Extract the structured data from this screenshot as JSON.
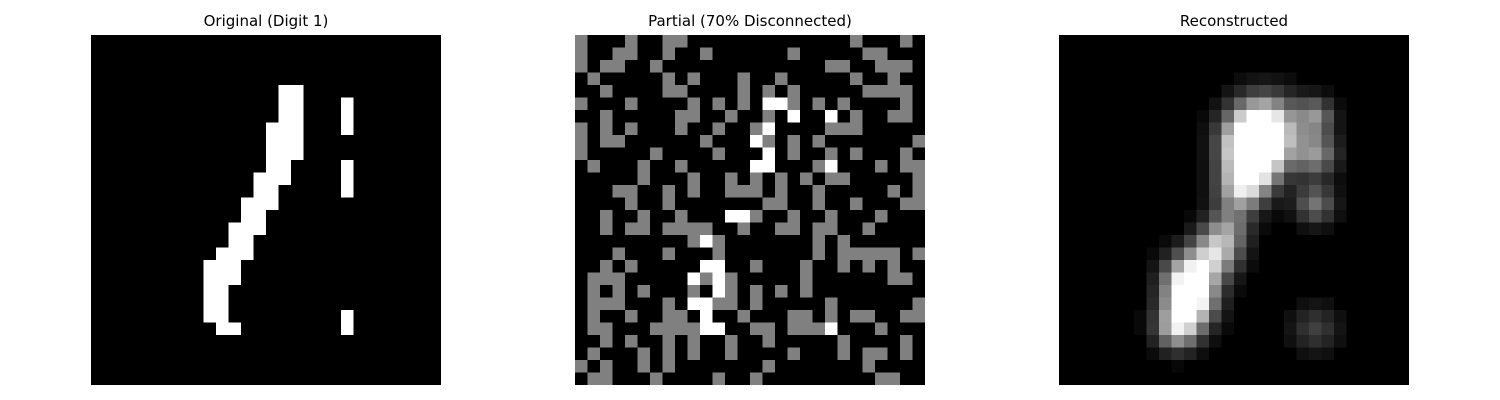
{
  "panels": [
    {
      "id": "original",
      "title": "Original (Digit 1)"
    },
    {
      "id": "partial",
      "title": "Partial (70% Disconnected)"
    },
    {
      "id": "reconstructed",
      "title": "Reconstructed"
    }
  ],
  "colors": {
    "background": "#ffffff",
    "image_background": "#000000",
    "pixel_on": "#ffffff",
    "pixel_disconnected": "#808080"
  }
}
